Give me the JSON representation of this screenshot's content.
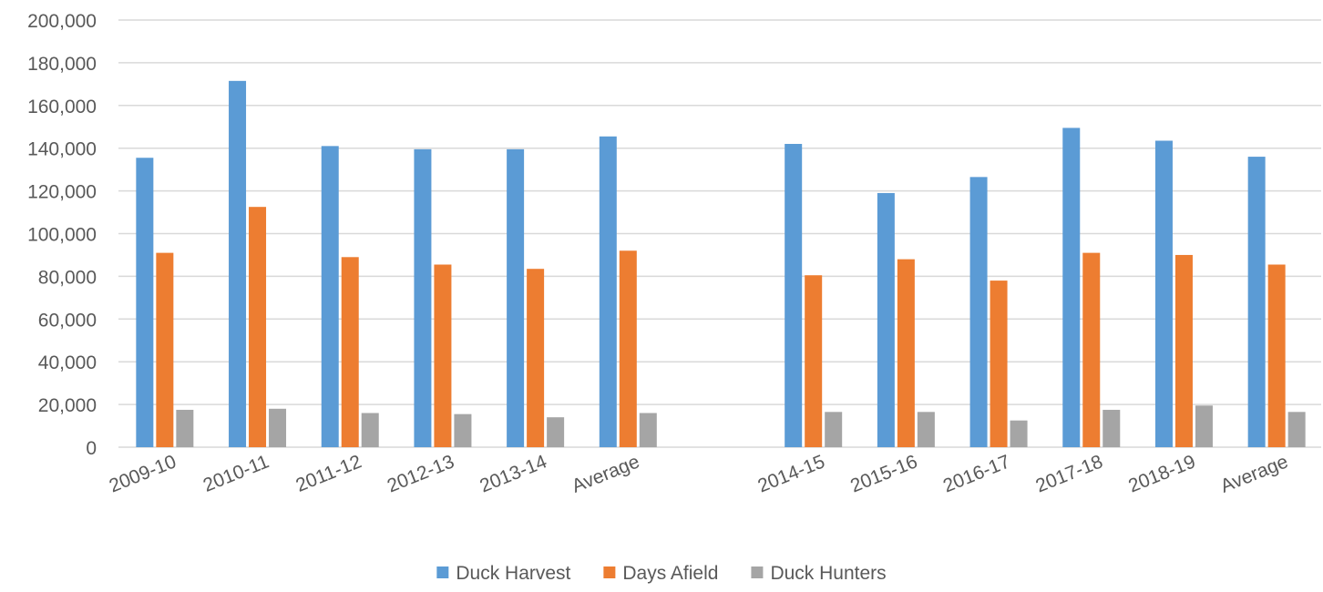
{
  "chart_data": {
    "type": "bar",
    "title": "",
    "xlabel": "",
    "ylabel": "",
    "ylim": [
      0,
      200000
    ],
    "yticks": [
      0,
      20000,
      40000,
      60000,
      80000,
      100000,
      120000,
      140000,
      160000,
      180000,
      200000
    ],
    "ytick_labels": [
      "0",
      "20,000",
      "40,000",
      "60,000",
      "80,000",
      "100,000",
      "120,000",
      "140,000",
      "160,000",
      "180,000",
      "200,000"
    ],
    "grid": true,
    "legend_position": "bottom",
    "categories": [
      "2009-10",
      "2010-11",
      "2011-12",
      "2012-13",
      "2013-14",
      "Average",
      "",
      "2014-15",
      "2015-16",
      "2016-17",
      "2017-18",
      "2018-19",
      "Average"
    ],
    "series": [
      {
        "name": "Duck Harvest",
        "color": "#5B9BD5",
        "values": [
          135500,
          171500,
          141000,
          139500,
          139500,
          145500,
          null,
          142000,
          119000,
          126500,
          149500,
          143500,
          136000
        ]
      },
      {
        "name": "Days Afield",
        "color": "#ED7D31",
        "values": [
          91000,
          112500,
          89000,
          85500,
          83500,
          92000,
          null,
          80500,
          88000,
          78000,
          91000,
          90000,
          85500
        ]
      },
      {
        "name": "Duck Hunters",
        "color": "#A5A5A5",
        "values": [
          17500,
          18000,
          16000,
          15500,
          14000,
          16000,
          null,
          16500,
          16500,
          12500,
          17500,
          19500,
          16500
        ]
      }
    ]
  }
}
